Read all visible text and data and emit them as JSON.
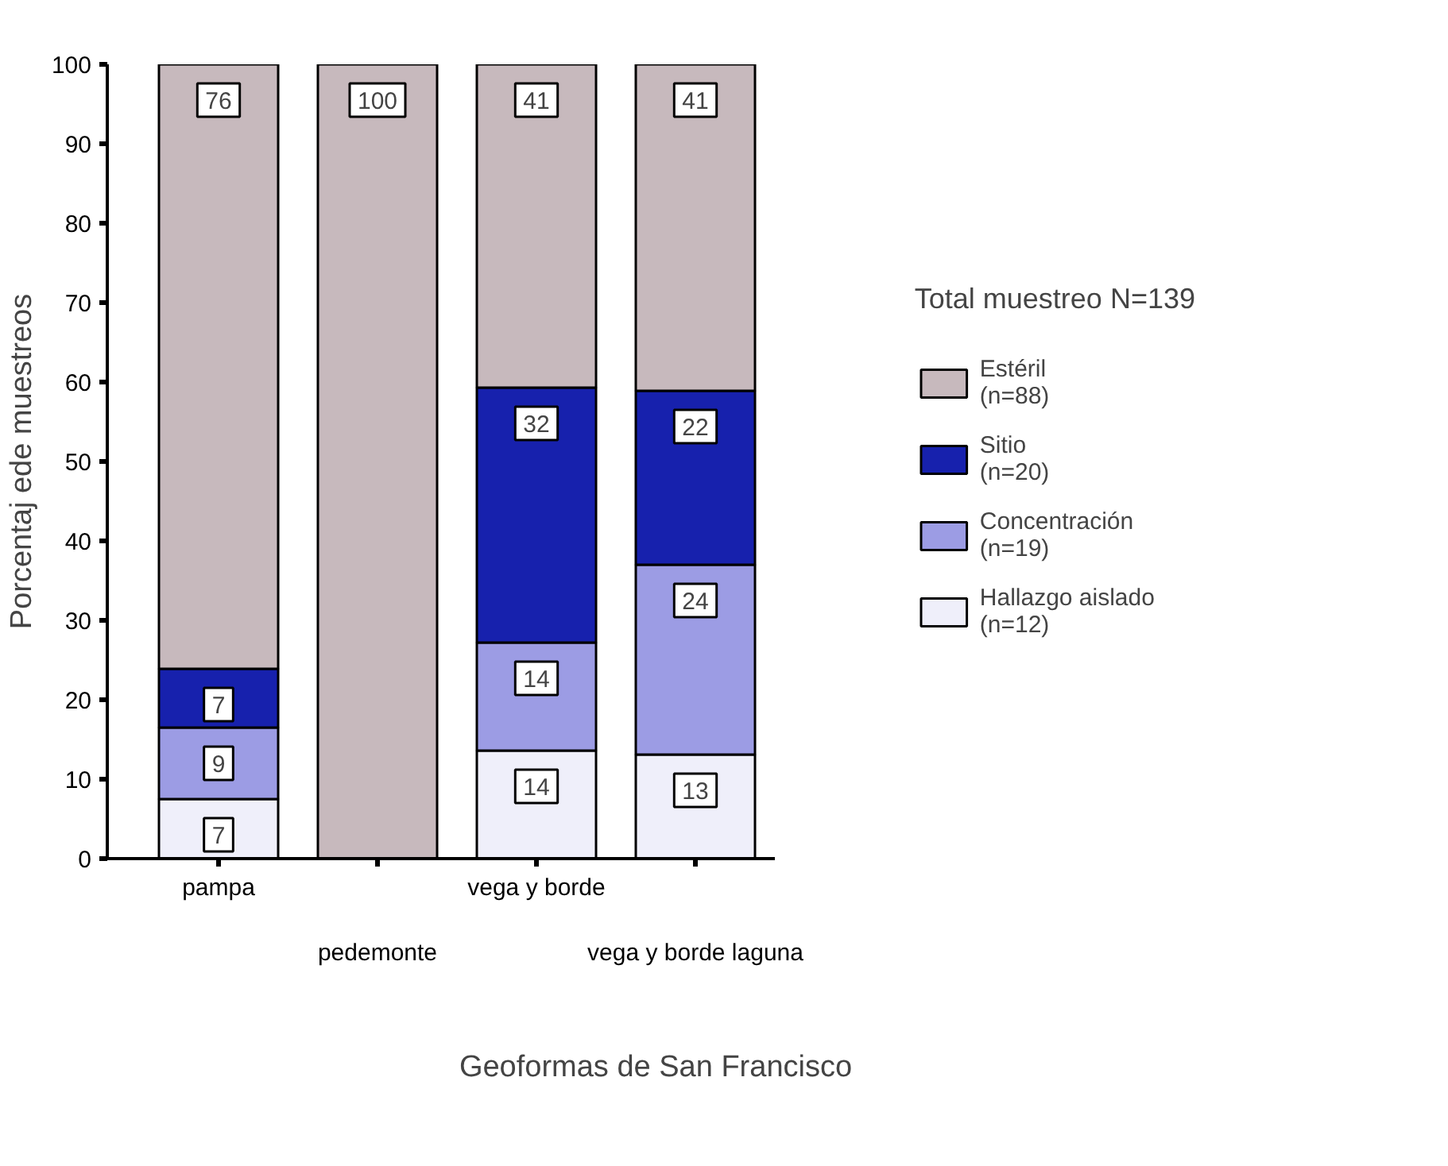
{
  "chart_data": {
    "type": "bar",
    "stacked": true,
    "xlabel": "Geoformas de San Francisco",
    "ylabel": "Porcentaj ede muestreos",
    "legend_title": "Total muestreo N=139",
    "legend": "right",
    "categories": [
      "pampa",
      "pedemonte",
      "vega y borde",
      "vega y borde laguna"
    ],
    "series": [
      {
        "name": "Hallazgo aislado\n(n=12)",
        "color": "#efeffa",
        "values": [
          7.5,
          null,
          13.6,
          13.1
        ],
        "value_labels": [
          "7",
          null,
          "14",
          "13"
        ]
      },
      {
        "name": "Concentración\n(n=19)",
        "color": "#9c9ce4",
        "values": [
          9.0,
          null,
          13.6,
          23.9
        ],
        "value_labels": [
          "9",
          null,
          "14",
          "24"
        ]
      },
      {
        "name": "Sitio\n(n=20)",
        "color": "#1721ad",
        "values": [
          7.4,
          null,
          32.1,
          21.9
        ],
        "value_labels": [
          "7",
          null,
          "32",
          "22"
        ]
      },
      {
        "name": "Estéril\n(n=88)",
        "color": "#c7b9bd",
        "values": [
          76.1,
          100,
          40.7,
          41.1
        ],
        "value_labels": [
          "76",
          "100",
          "41",
          "41"
        ]
      }
    ],
    "ylim": [
      0,
      100
    ],
    "yticks": [
      0,
      10,
      20,
      30,
      40,
      50,
      60,
      70,
      80,
      90,
      100
    ],
    "grid": false
  }
}
